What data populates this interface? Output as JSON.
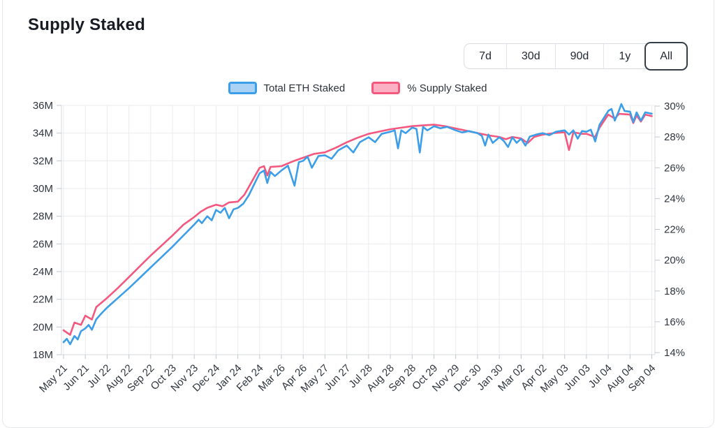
{
  "header": {
    "title": "Supply Staked"
  },
  "range_buttons": {
    "options": [
      "7d",
      "30d",
      "90d",
      "1y",
      "All"
    ],
    "selected": "All"
  },
  "legend": {
    "items": [
      {
        "label": "Total ETH Staked",
        "fill": "#a9d2f4",
        "border": "#3c9ee8"
      },
      {
        "label": "% Supply Staked",
        "fill": "#fbb0c4",
        "border": "#f4587e"
      }
    ]
  },
  "chart_data": {
    "type": "line",
    "title": "Supply Staked",
    "grid": true,
    "legend_position": "top",
    "x_axis": {
      "tick_labels": [
        "May 21",
        "Jun 21",
        "Jul 22",
        "Aug 22",
        "Sep 22",
        "Oct 23",
        "Nov 23",
        "Dec 24",
        "Jan 24",
        "Feb 24",
        "Mar 26",
        "Apr 26",
        "May 27",
        "Jun 27",
        "Jul 28",
        "Aug 28",
        "Sep 28",
        "Oct 29",
        "Nov 29",
        "Dec 30",
        "Jan 30",
        "Mar 02",
        "Apr 02",
        "May 03",
        "Jun 03",
        "Jul 04",
        "Aug 04",
        "Sep 04"
      ],
      "label_rotation_deg": -45
    },
    "y_left_axis": {
      "unit": "M",
      "range": [
        18,
        36
      ],
      "tick_step": 2,
      "tick_labels": [
        "18M",
        "20M",
        "22M",
        "24M",
        "26M",
        "28M",
        "30M",
        "32M",
        "34M",
        "36M"
      ],
      "for_series": "Total ETH Staked"
    },
    "y_right_axis": {
      "unit": "%",
      "range": [
        14,
        30
      ],
      "tick_step": 2,
      "tick_labels": [
        "14%",
        "16%",
        "18%",
        "20%",
        "22%",
        "24%",
        "26%",
        "28%",
        "30%"
      ],
      "for_series": "% Supply Staked"
    },
    "series": [
      {
        "name": "% Supply Staked",
        "axis": "right",
        "color": "#f4587e",
        "unit": "%",
        "points": [
          [
            0,
            15.45
          ],
          [
            0.3,
            15.15
          ],
          [
            0.5,
            15.95
          ],
          [
            0.8,
            15.8
          ],
          [
            1,
            16.4
          ],
          [
            1.3,
            16.15
          ],
          [
            1.5,
            16.95
          ],
          [
            2,
            17.55
          ],
          [
            2.5,
            18.2
          ],
          [
            3,
            18.9
          ],
          [
            3.5,
            19.6
          ],
          [
            4,
            20.3
          ],
          [
            4.5,
            20.95
          ],
          [
            5,
            21.6
          ],
          [
            5.5,
            22.3
          ],
          [
            6,
            22.8
          ],
          [
            6.3,
            23.15
          ],
          [
            6.6,
            23.4
          ],
          [
            7,
            23.6
          ],
          [
            7.3,
            23.5
          ],
          [
            7.6,
            23.75
          ],
          [
            8,
            23.8
          ],
          [
            8.3,
            24.25
          ],
          [
            8.6,
            25.0
          ],
          [
            9,
            26.0
          ],
          [
            9.2,
            26.1
          ],
          [
            9.35,
            25.5
          ],
          [
            9.5,
            26.05
          ],
          [
            10,
            26.1
          ],
          [
            10.5,
            26.4
          ],
          [
            11,
            26.65
          ],
          [
            11.5,
            26.9
          ],
          [
            12,
            27.0
          ],
          [
            12.5,
            27.3
          ],
          [
            13,
            27.65
          ],
          [
            13.5,
            27.95
          ],
          [
            14,
            28.2
          ],
          [
            14.5,
            28.35
          ],
          [
            15,
            28.5
          ],
          [
            15.5,
            28.6
          ],
          [
            16,
            28.7
          ],
          [
            16.5,
            28.75
          ],
          [
            17,
            28.8
          ],
          [
            17.5,
            28.7
          ],
          [
            18,
            28.55
          ],
          [
            18.5,
            28.4
          ],
          [
            19,
            28.25
          ],
          [
            19.5,
            28.1
          ],
          [
            20,
            28.0
          ],
          [
            20.3,
            27.85
          ],
          [
            20.6,
            28.0
          ],
          [
            21,
            27.9
          ],
          [
            21.3,
            27.6
          ],
          [
            21.6,
            28.0
          ],
          [
            22,
            28.15
          ],
          [
            22.5,
            28.25
          ],
          [
            23,
            28.3
          ],
          [
            23.2,
            27.15
          ],
          [
            23.4,
            28.3
          ],
          [
            23.8,
            28.2
          ],
          [
            24,
            28.2
          ],
          [
            24.4,
            28.0
          ],
          [
            24.6,
            28.6
          ],
          [
            25,
            29.45
          ],
          [
            25.3,
            29.2
          ],
          [
            25.5,
            29.5
          ],
          [
            26,
            29.45
          ],
          [
            26.15,
            28.9
          ],
          [
            26.3,
            29.4
          ],
          [
            26.5,
            29.0
          ],
          [
            26.7,
            29.45
          ],
          [
            27,
            29.35
          ]
        ]
      },
      {
        "name": "Total ETH Staked",
        "axis": "left",
        "color": "#3c9ee8",
        "unit": "M ETH",
        "points": [
          [
            0,
            18.9
          ],
          [
            0.15,
            19.15
          ],
          [
            0.3,
            18.75
          ],
          [
            0.5,
            19.35
          ],
          [
            0.65,
            19.1
          ],
          [
            0.8,
            19.7
          ],
          [
            1,
            19.9
          ],
          [
            1.15,
            20.15
          ],
          [
            1.3,
            19.8
          ],
          [
            1.5,
            20.55
          ],
          [
            1.75,
            21.0
          ],
          [
            2,
            21.4
          ],
          [
            2.25,
            21.75
          ],
          [
            2.5,
            22.1
          ],
          [
            2.75,
            22.45
          ],
          [
            3,
            22.8
          ],
          [
            3.5,
            23.55
          ],
          [
            4,
            24.3
          ],
          [
            4.5,
            25.05
          ],
          [
            5,
            25.8
          ],
          [
            5.5,
            26.6
          ],
          [
            6,
            27.4
          ],
          [
            6.2,
            27.75
          ],
          [
            6.35,
            27.5
          ],
          [
            6.6,
            28.0
          ],
          [
            6.8,
            27.7
          ],
          [
            7,
            28.45
          ],
          [
            7.2,
            28.25
          ],
          [
            7.4,
            28.6
          ],
          [
            7.6,
            27.85
          ],
          [
            7.8,
            28.5
          ],
          [
            8,
            28.6
          ],
          [
            8.25,
            28.9
          ],
          [
            8.5,
            29.5
          ],
          [
            8.75,
            30.3
          ],
          [
            9,
            31.1
          ],
          [
            9.2,
            31.3
          ],
          [
            9.35,
            30.4
          ],
          [
            9.5,
            31.2
          ],
          [
            9.7,
            30.9
          ],
          [
            10,
            31.3
          ],
          [
            10.3,
            31.65
          ],
          [
            10.6,
            30.2
          ],
          [
            10.8,
            31.9
          ],
          [
            11,
            32.0
          ],
          [
            11.2,
            32.3
          ],
          [
            11.4,
            31.5
          ],
          [
            11.7,
            32.35
          ],
          [
            12,
            32.4
          ],
          [
            12.3,
            32.15
          ],
          [
            12.6,
            32.75
          ],
          [
            13,
            33.1
          ],
          [
            13.3,
            32.6
          ],
          [
            13.6,
            33.35
          ],
          [
            14,
            33.7
          ],
          [
            14.3,
            33.35
          ],
          [
            14.6,
            33.95
          ],
          [
            15,
            34.1
          ],
          [
            15.2,
            34.2
          ],
          [
            15.35,
            32.9
          ],
          [
            15.5,
            34.2
          ],
          [
            15.7,
            34.0
          ],
          [
            16,
            34.4
          ],
          [
            16.2,
            34.3
          ],
          [
            16.35,
            32.6
          ],
          [
            16.5,
            34.45
          ],
          [
            16.7,
            34.2
          ],
          [
            17,
            34.5
          ],
          [
            17.3,
            34.35
          ],
          [
            17.6,
            34.45
          ],
          [
            18,
            34.2
          ],
          [
            18.3,
            34.05
          ],
          [
            18.6,
            34.15
          ],
          [
            19,
            34.0
          ],
          [
            19.2,
            33.8
          ],
          [
            19.35,
            33.1
          ],
          [
            19.5,
            33.9
          ],
          [
            19.7,
            33.3
          ],
          [
            20,
            33.7
          ],
          [
            20.2,
            33.45
          ],
          [
            20.4,
            33.0
          ],
          [
            20.6,
            33.7
          ],
          [
            20.8,
            33.3
          ],
          [
            21,
            33.6
          ],
          [
            21.2,
            33.1
          ],
          [
            21.4,
            33.75
          ],
          [
            21.7,
            33.9
          ],
          [
            22,
            34.0
          ],
          [
            22.3,
            33.85
          ],
          [
            22.6,
            34.1
          ],
          [
            23,
            34.2
          ],
          [
            23.2,
            33.9
          ],
          [
            23.4,
            34.2
          ],
          [
            23.6,
            33.6
          ],
          [
            23.8,
            34.15
          ],
          [
            24,
            34.1
          ],
          [
            24.2,
            34.25
          ],
          [
            24.4,
            33.4
          ],
          [
            24.6,
            34.6
          ],
          [
            24.8,
            35.1
          ],
          [
            25,
            35.6
          ],
          [
            25.15,
            35.75
          ],
          [
            25.3,
            34.9
          ],
          [
            25.5,
            35.65
          ],
          [
            25.6,
            36.1
          ],
          [
            25.75,
            35.6
          ],
          [
            26,
            35.55
          ],
          [
            26.15,
            34.8
          ],
          [
            26.3,
            35.5
          ],
          [
            26.5,
            34.9
          ],
          [
            26.7,
            35.5
          ],
          [
            27,
            35.4
          ]
        ]
      }
    ]
  },
  "colors": {
    "grid": "#e9ebee",
    "axis_line": "#d7dadd",
    "tick_mark": "#c3c7cc",
    "axis_text": "#30363e",
    "title_text": "#181c24"
  }
}
